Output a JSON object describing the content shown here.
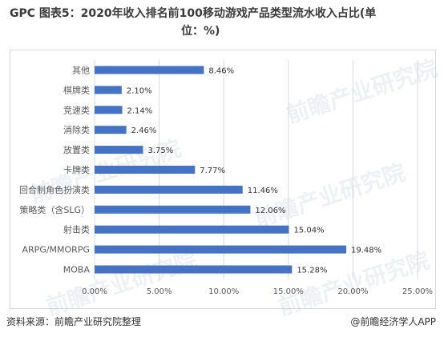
{
  "title": {
    "line1": "GPC 图表5：2020年收入排名前100移动游戏产品类型流水收入占比(单",
    "line2": "位：%)"
  },
  "footer": {
    "source": "资料来源：前瞻产业研究院整理",
    "credit": "@前瞻经济学人APP"
  },
  "watermark": {
    "text": "前瞻产业研究院"
  },
  "colors": {
    "bar": "#4472c4",
    "grid": "#d9d9d9",
    "axis_text": "#595959"
  },
  "chart_data": {
    "type": "bar",
    "orientation": "horizontal",
    "categories": [
      "其他",
      "棋牌类",
      "竞速类",
      "消除类",
      "放置类",
      "卡牌类",
      "回合制角色扮演类",
      "策略类（含SLG）",
      "射击类",
      "ARPG/MMORPG",
      "MOBA"
    ],
    "values": [
      8.46,
      2.1,
      2.14,
      2.46,
      3.75,
      7.77,
      11.46,
      12.06,
      15.04,
      19.48,
      15.28
    ],
    "value_labels": [
      "8.46%",
      "2.10%",
      "2.14%",
      "2.46%",
      "3.75%",
      "7.77%",
      "11.46%",
      "12.06%",
      "15.04%",
      "19.48%",
      "15.28%"
    ],
    "xlim": [
      0,
      25
    ],
    "xticks": [
      0,
      5,
      10,
      15,
      20,
      25
    ],
    "xtick_labels": [
      "0.00%",
      "5.00%",
      "10.00%",
      "15.00%",
      "20.00%",
      "25.00%"
    ],
    "grid": true,
    "title": "",
    "xlabel": "",
    "ylabel": ""
  }
}
